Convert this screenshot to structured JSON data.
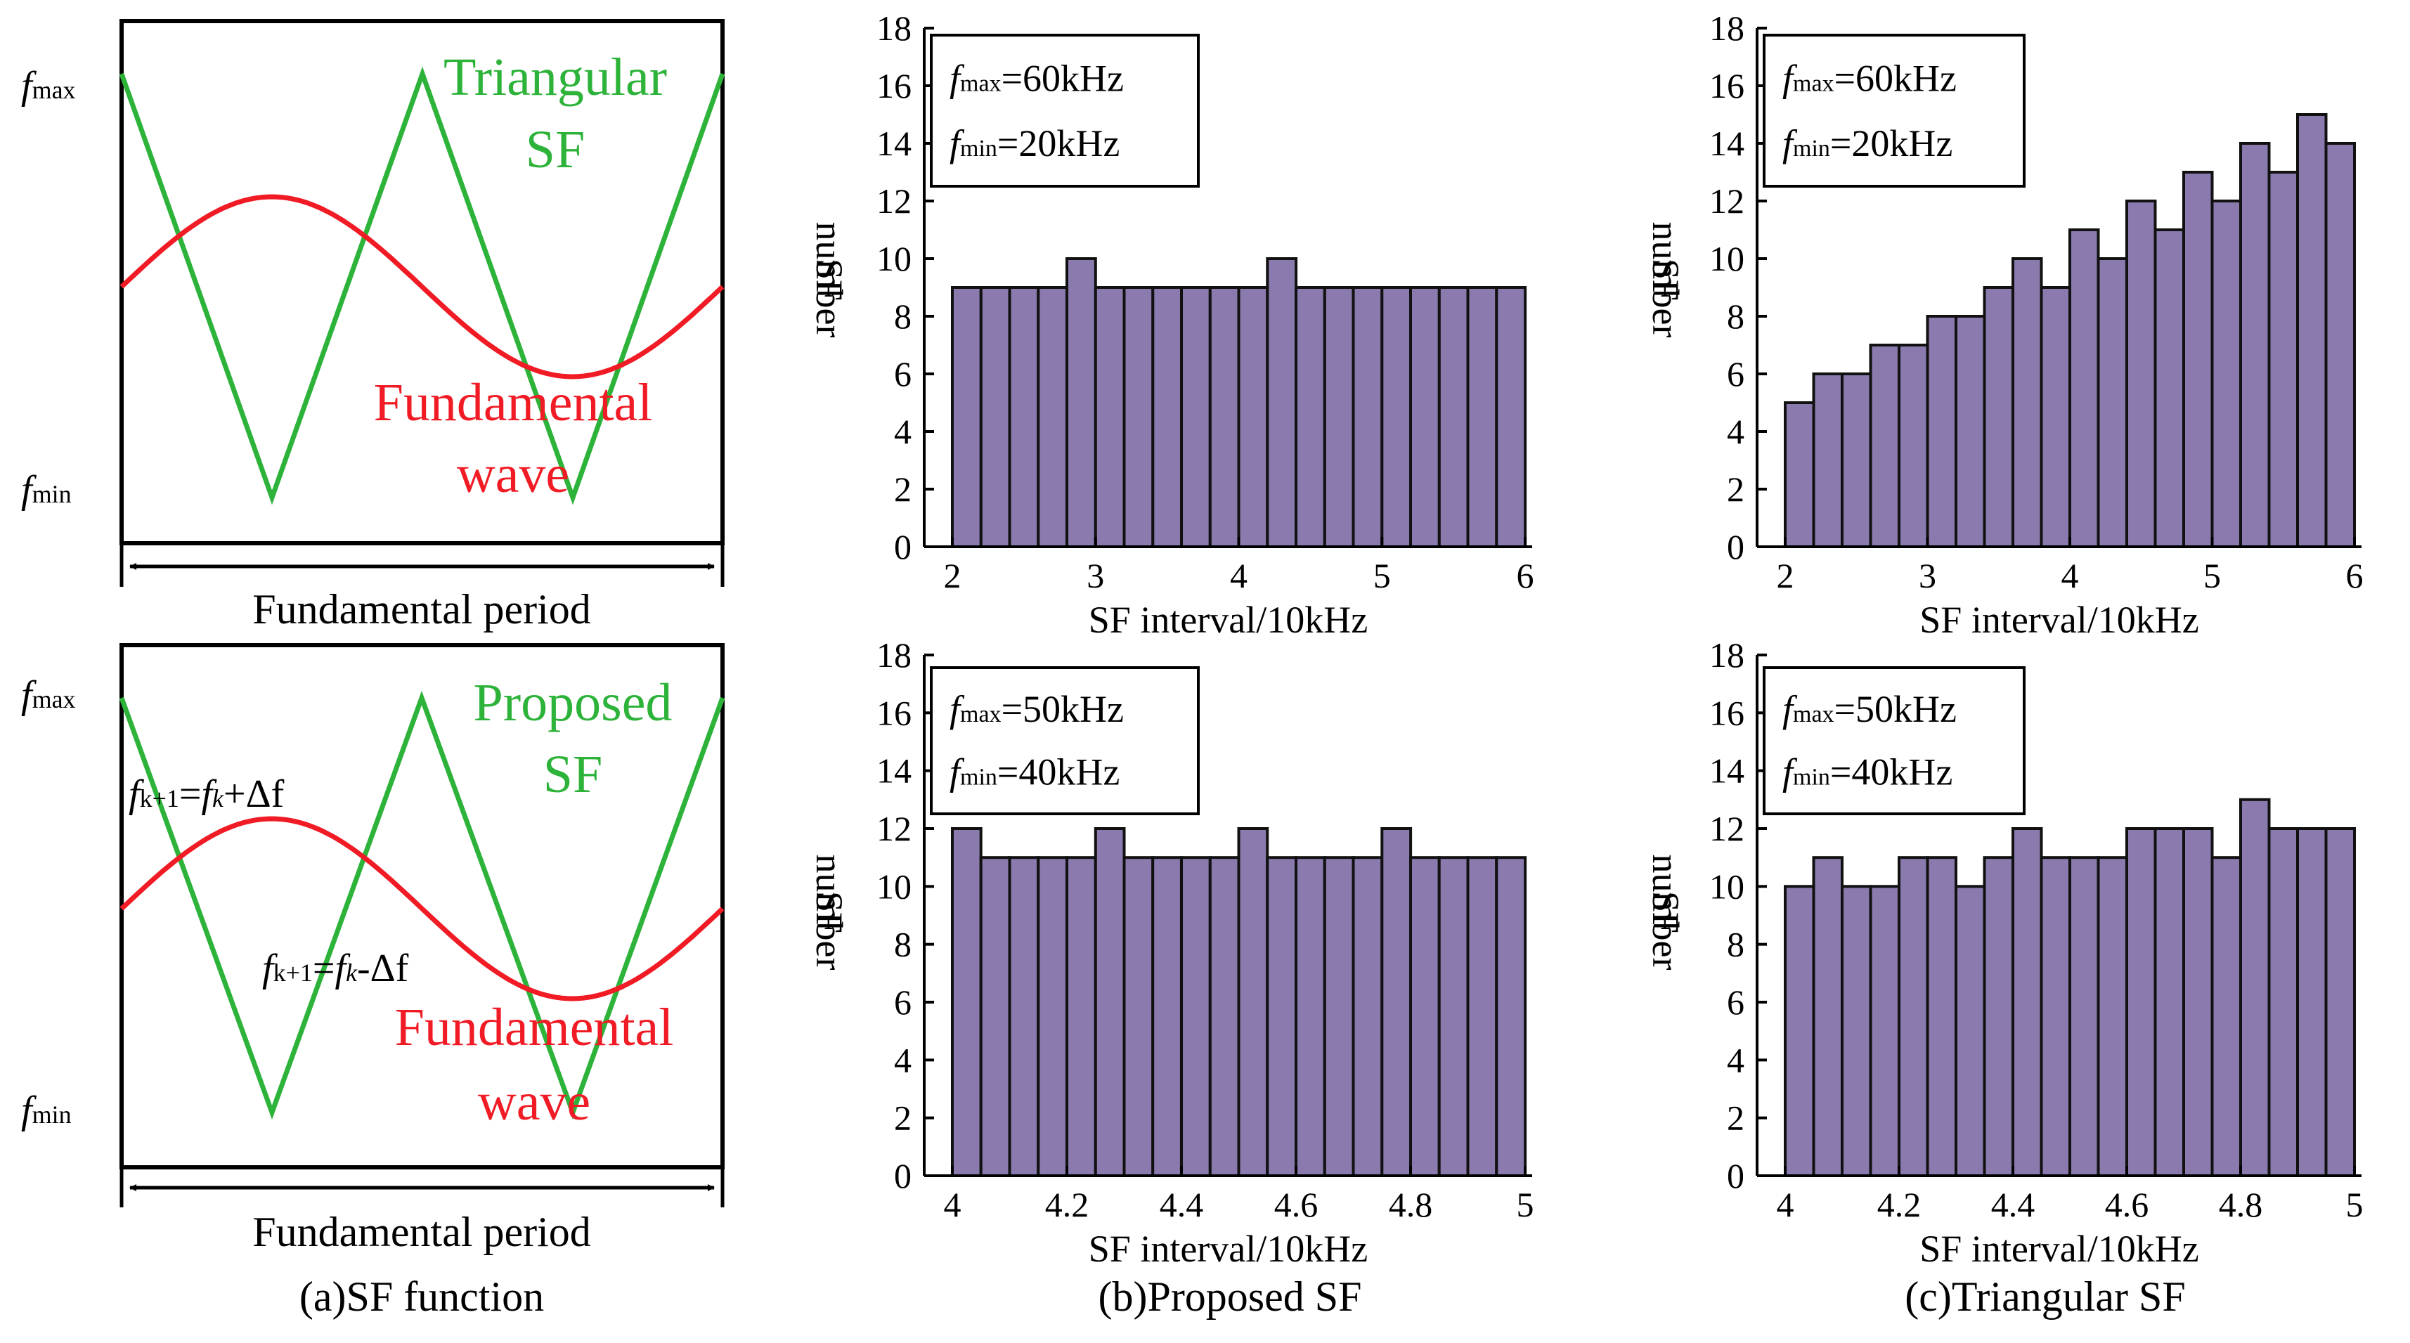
{
  "colors": {
    "bar_fill": "#8a7aad",
    "bar_edge": "#111111",
    "sf_wave": "#2db33a",
    "fundamental_wave": "#f01b24",
    "axis": "#000000"
  },
  "panel_a": {
    "top": {
      "fmax_base": "f",
      "fmax_sub": "max",
      "fmin_base": "f",
      "fmin_sub": "min",
      "sf_label_line1": "Triangular",
      "sf_label_line2": "SF",
      "fund_label_line1": "Fundamental",
      "fund_label_line2": "wave",
      "period_label": "Fundamental period"
    },
    "bottom": {
      "fmax_base": "f",
      "fmax_sub": "max",
      "fmin_base": "f",
      "fmin_sub": "min",
      "sf_label_line1": "Proposed",
      "sf_label_line2": "SF",
      "fund_label_line1": "Fundamental",
      "fund_label_line2": "wave",
      "eq_up_f": "f",
      "eq_up_sub1": "k+1",
      "eq_up_mid": "=",
      "eq_up_f2": "f",
      "eq_up_sub2": "k",
      "eq_up_rest": "+Δf",
      "eq_down_f": "f",
      "eq_down_sub1": "k+1",
      "eq_down_mid": "=",
      "eq_down_f2": "f",
      "eq_down_sub2": "k",
      "eq_down_rest": "-Δf",
      "period_label": "Fundamental period"
    },
    "caption": "(a)SF function"
  },
  "captions": {
    "b": "(b)Proposed SF",
    "c": "(c)Triangular SF"
  },
  "chart_data": [
    {
      "id": "b_top",
      "type": "bar",
      "title": "",
      "xlabel": "SF interval/10kHz",
      "ylabel_line1": "SF",
      "ylabel_line2": "number",
      "xlim": [
        2,
        6
      ],
      "ylim": [
        0,
        18
      ],
      "xticks": [
        "2",
        "3",
        "4",
        "5",
        "6"
      ],
      "yticks": [
        "0",
        "2",
        "4",
        "6",
        "8",
        "10",
        "12",
        "14",
        "16",
        "18"
      ],
      "bin_start": 2,
      "bin_width": 0.2,
      "values": [
        9,
        9,
        9,
        9,
        10,
        9,
        9,
        9,
        9,
        9,
        9,
        10,
        9,
        9,
        9,
        9,
        9,
        9,
        9,
        9
      ],
      "legend": {
        "fmax_sub": "max",
        "fmax_val": "=60kHz",
        "fmin_sub": "min",
        "fmin_val": "=20kHz",
        "f": "f"
      }
    },
    {
      "id": "c_top",
      "type": "bar",
      "title": "",
      "xlabel": "SF interval/10kHz",
      "ylabel_line1": "SF",
      "ylabel_line2": "number",
      "xlim": [
        2,
        6
      ],
      "ylim": [
        0,
        18
      ],
      "xticks": [
        "2",
        "3",
        "4",
        "5",
        "6"
      ],
      "yticks": [
        "0",
        "2",
        "4",
        "6",
        "8",
        "10",
        "12",
        "14",
        "16",
        "18"
      ],
      "bin_start": 2,
      "bin_width": 0.2,
      "values": [
        5,
        6,
        6,
        7,
        7,
        8,
        8,
        9,
        10,
        9,
        11,
        10,
        12,
        11,
        13,
        12,
        14,
        13,
        15,
        14
      ],
      "legend": {
        "fmax_sub": "max",
        "fmax_val": "=60kHz",
        "fmin_sub": "min",
        "fmin_val": "=20kHz",
        "f": "f"
      }
    },
    {
      "id": "b_bottom",
      "type": "bar",
      "title": "",
      "xlabel": "SF interval/10kHz",
      "ylabel_line1": "SF",
      "ylabel_line2": "number",
      "xlim": [
        4,
        5
      ],
      "ylim": [
        0,
        18
      ],
      "xticks": [
        "4",
        "4.2",
        "4.4",
        "4.6",
        "4.8",
        "5"
      ],
      "yticks": [
        "0",
        "2",
        "4",
        "6",
        "8",
        "10",
        "12",
        "14",
        "16",
        "18"
      ],
      "bin_start": 4,
      "bin_width": 0.05,
      "values": [
        12,
        11,
        11,
        11,
        11,
        12,
        11,
        11,
        11,
        11,
        12,
        11,
        11,
        11,
        11,
        12,
        11,
        11,
        11,
        11
      ],
      "legend": {
        "fmax_sub": "max",
        "fmax_val": "=50kHz",
        "fmin_sub": "min",
        "fmin_val": "=40kHz",
        "f": "f"
      }
    },
    {
      "id": "c_bottom",
      "type": "bar",
      "title": "",
      "xlabel": "SF interval/10kHz",
      "ylabel_line1": "SF",
      "ylabel_line2": "number",
      "xlim": [
        4,
        5
      ],
      "ylim": [
        0,
        18
      ],
      "xticks": [
        "4",
        "4.2",
        "4.4",
        "4.6",
        "4.8",
        "5"
      ],
      "yticks": [
        "0",
        "2",
        "4",
        "6",
        "8",
        "10",
        "12",
        "14",
        "16",
        "18"
      ],
      "bin_start": 4,
      "bin_width": 0.05,
      "values": [
        10,
        11,
        10,
        10,
        11,
        11,
        10,
        11,
        12,
        11,
        11,
        11,
        12,
        12,
        12,
        11,
        13,
        12,
        12,
        12
      ],
      "legend": {
        "fmax_sub": "max",
        "fmax_val": "=50kHz",
        "fmin_sub": "min",
        "fmin_val": "=40kHz",
        "f": "f"
      }
    }
  ]
}
